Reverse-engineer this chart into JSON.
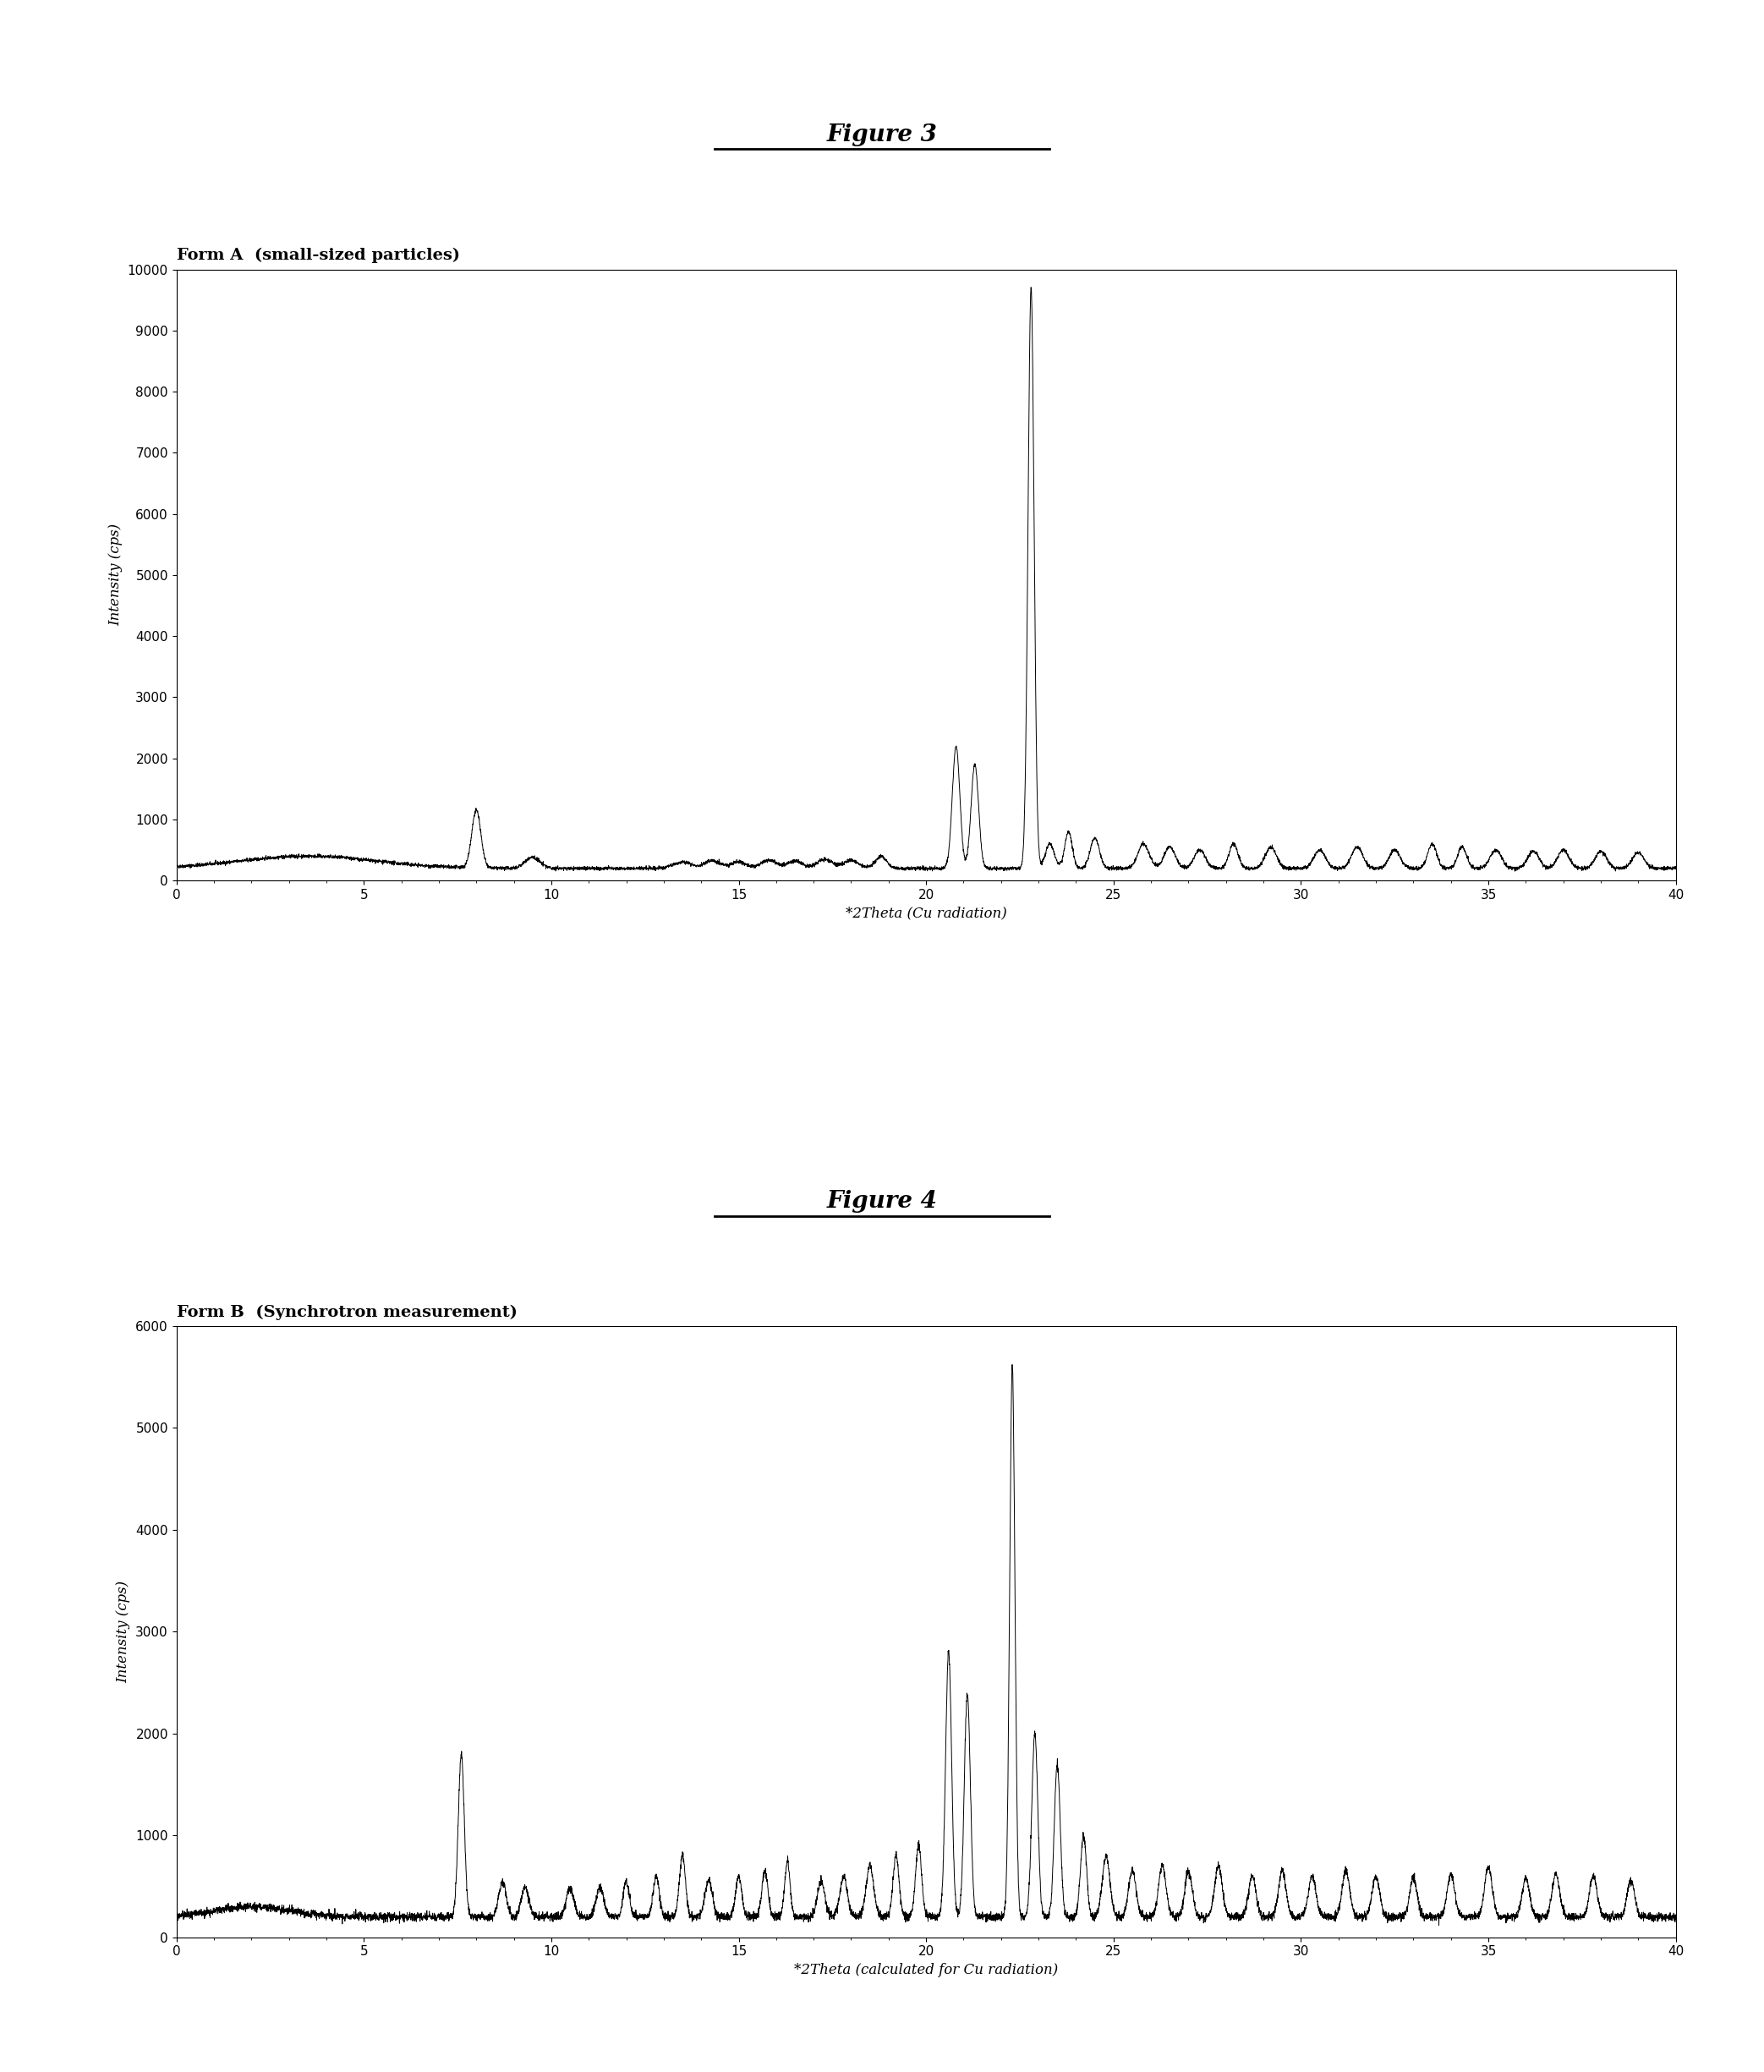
{
  "fig3_title": "Figure 3",
  "fig4_title": "Figure 4",
  "fig3_subtitle": "Form A  (small-sized particles)",
  "fig4_subtitle": "Form B  (Synchrotron measurement)",
  "fig3_ylabel": "Intensity (cps)",
  "fig4_ylabel": "Intensity (cps)",
  "fig3_xlabel": "*2Theta (Cu radiation)",
  "fig4_xlabel": "*2Theta (calculated for Cu radiation)",
  "fig3_ylim": [
    0,
    10000
  ],
  "fig4_ylim": [
    0,
    6000
  ],
  "fig3_yticks": [
    0,
    1000,
    2000,
    3000,
    4000,
    5000,
    6000,
    7000,
    8000,
    9000,
    10000
  ],
  "fig4_yticks": [
    0,
    1000,
    2000,
    3000,
    4000,
    5000,
    6000
  ],
  "xmin": 0,
  "xmax": 40,
  "background_color": "#ffffff",
  "line_color": "#000000"
}
